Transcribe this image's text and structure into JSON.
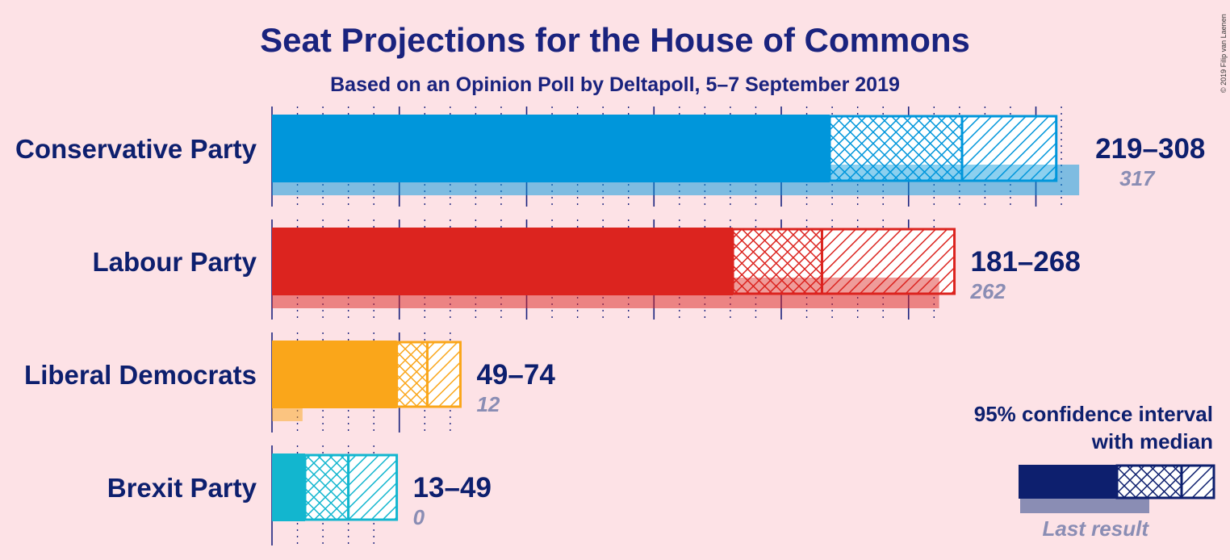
{
  "title": "Seat Projections for the House of Commons",
  "subtitle": "Based on an Opinion Poll by Deltapoll, 5–7 September 2019",
  "copyright": "© 2019 Filip van Laenen",
  "chart_data": {
    "type": "bar",
    "orientation": "horizontal",
    "x_unit": "seats",
    "gridlines": {
      "major_every": 50,
      "minor_every": 10,
      "max": 310
    },
    "series": [
      {
        "party": "Conservative Party",
        "range_label": "219–308",
        "ci_low": 219,
        "median": 271,
        "ci_high": 308,
        "last_result": 317,
        "last_label": "317",
        "color": "#0096DB"
      },
      {
        "party": "Labour Party",
        "range_label": "181–268",
        "ci_low": 181,
        "median": 216,
        "ci_high": 268,
        "last_result": 262,
        "last_label": "262",
        "color": "#DC241F"
      },
      {
        "party": "Liberal Democrats",
        "range_label": "49–74",
        "ci_low": 49,
        "median": 61,
        "ci_high": 74,
        "last_result": 12,
        "last_label": "12",
        "color": "#FAA61A"
      },
      {
        "party": "Brexit Party",
        "range_label": "13–49",
        "ci_low": 13,
        "median": 30,
        "ci_high": 49,
        "last_result": 0,
        "last_label": "0",
        "color": "#12B6CF"
      }
    ]
  },
  "legend": {
    "line1": "95% confidence interval",
    "line2": "with median",
    "last_result": "Last result",
    "color": "#0D1F6E"
  }
}
